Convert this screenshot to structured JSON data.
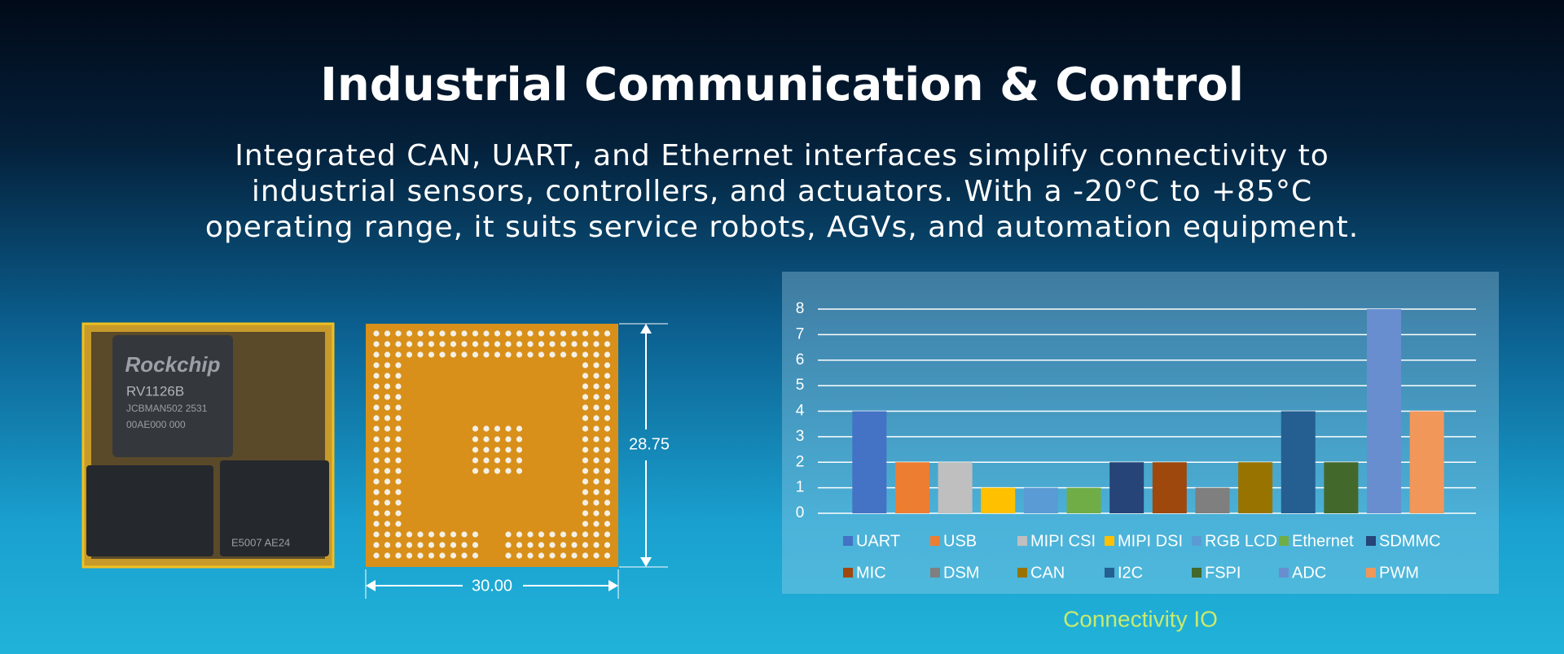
{
  "header": {
    "title": "Industrial Communication & Control",
    "subtitle": "Integrated CAN, UART, and Ethernet interfaces simplify connectivity to industrial sensors, controllers, and actuators. With a -20°C to +85°C operating range, it suits service robots, AGVs, and automation equipment."
  },
  "module": {
    "brand": "Rockchip",
    "model": "RV1126B",
    "marking_1": "JCBMAN502 2531",
    "marking_2": "00AE000 000",
    "marking_3": "E5007  AE24",
    "height_label": "28.75",
    "width_label": "30.00"
  },
  "chart_data": {
    "type": "bar",
    "title": "Connectivity IO",
    "categories": [
      "UART",
      "USB",
      "MIPI CSI",
      "MIPI DSI",
      "RGB LCD",
      "Ethernet",
      "SDMMC",
      "MIC",
      "DSM",
      "CAN",
      "I2C",
      "FSPI",
      "ADC",
      "PWM"
    ],
    "values": [
      4,
      2,
      2,
      1,
      1,
      1,
      2,
      2,
      1,
      2,
      4,
      2,
      8,
      4
    ],
    "colors": [
      "#4472c4",
      "#ed7d31",
      "#bfbfbf",
      "#ffc000",
      "#5b9bd5",
      "#70ad47",
      "#264478",
      "#9e480e",
      "#7f7f7f",
      "#997300",
      "#255e91",
      "#43682b",
      "#698ed0",
      "#f1975a"
    ],
    "ylim": [
      0,
      8
    ],
    "yticks": [
      0,
      1,
      2,
      3,
      4,
      5,
      6,
      7,
      8
    ],
    "grid": true
  }
}
